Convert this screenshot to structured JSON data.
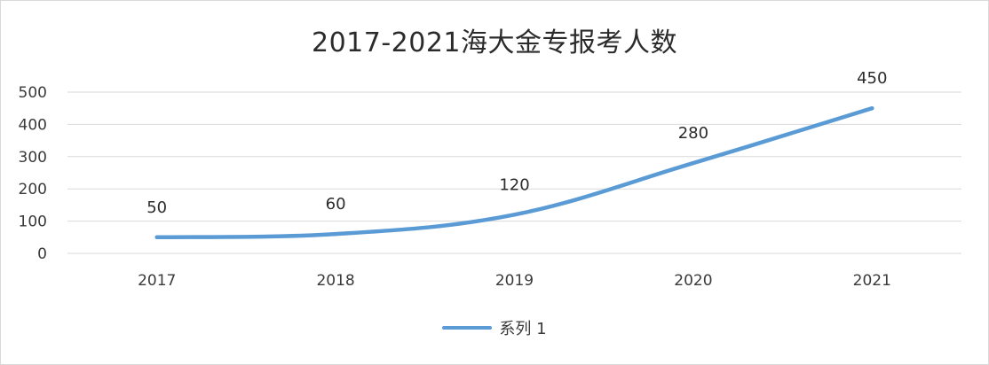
{
  "chart_data": {
    "type": "line",
    "title": "2017-2021海大金专报考人数",
    "categories": [
      "2017",
      "2018",
      "2019",
      "2020",
      "2021"
    ],
    "series": [
      {
        "name": "系列 1",
        "values": [
          50,
          60,
          120,
          280,
          450
        ]
      }
    ],
    "data_labels": [
      "50",
      "60",
      "120",
      "280",
      "450"
    ],
    "yticks": [
      "0",
      "100",
      "200",
      "300",
      "400",
      "500"
    ],
    "ylim": [
      0,
      500
    ],
    "grid": true,
    "legend_position": "bottom",
    "line_color": "#5b9bd5"
  }
}
